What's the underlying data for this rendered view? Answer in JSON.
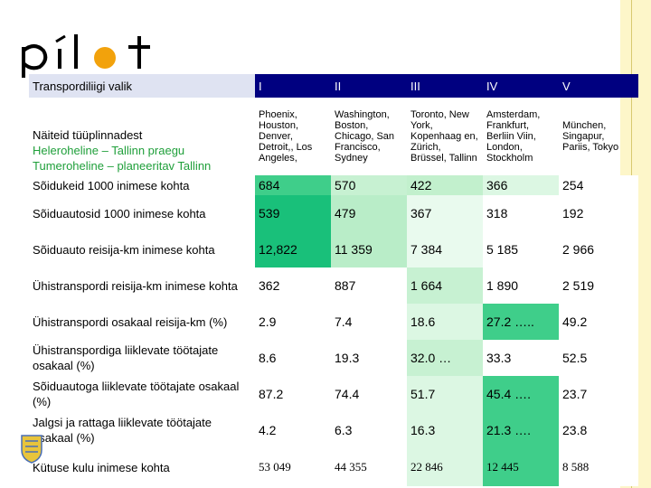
{
  "logo": {
    "text": "pilot"
  },
  "header": {
    "label": "Transpordiliigi valik",
    "columns": [
      "I",
      "II",
      "III",
      "IV",
      "V"
    ]
  },
  "intro": {
    "line1": "Näiteid tüüplinnadest",
    "line2": "Heleroheline – Tallinn praegu",
    "line3": "Tumeroheline – planeeritav Tallinn"
  },
  "cities": [
    "Phoenix, Houston, Denver, Detroit,, Los Angeles,",
    "Washington, Boston, Chicago, San Francisco, Sydney",
    "Toronto, New York, Kopenhaag en, Zürich, Brüssel, Tallinn",
    "Amsterdam, Frankfurt, Berliin Viin, London, Stockholm",
    "München, Singapur, Pariis, Tokyo"
  ],
  "rows": [
    {
      "label": "Sõidukeid 1000 inimese kohta",
      "values": [
        "684",
        "570",
        "422",
        "366",
        "254"
      ]
    },
    {
      "label": "Sõiduautosid 1000 inimese kohta",
      "values": [
        "539",
        "479",
        "367",
        "318",
        "192"
      ]
    },
    {
      "label": "Sõiduauto reisija-km inimese kohta",
      "values": [
        "12,822",
        "11 359",
        "7 384",
        "5 185",
        "2 966"
      ]
    },
    {
      "label": "Ühistranspordi reisija-km inimese kohta",
      "values": [
        "362",
        "887",
        "1 664",
        "1 890",
        "2 519"
      ]
    },
    {
      "label": "Ühistranspordi osakaal reisija-km (%)",
      "values": [
        "2.9",
        "7.4",
        "18.6",
        "27.2 …..",
        "49.2"
      ]
    },
    {
      "label": "Ühistranspordiga liiklevate töötajate osakaal (%)",
      "values": [
        "8.6",
        "19.3",
        "32.0 …",
        "33.3",
        "52.5"
      ]
    },
    {
      "label": "Sõiduautoga liiklevate töötajate osakaal (%)",
      "values": [
        "87.2",
        "74.4",
        "51.7",
        "45.4 ….",
        "23.7"
      ]
    },
    {
      "label": "Jalgsi ja rattaga liiklevate töötajate osakaal (%)",
      "values": [
        "4.2",
        "6.3",
        "16.3",
        "21.3 ….",
        "23.8"
      ]
    },
    {
      "label": "Kütuse kulu inimese kohta",
      "values": [
        "53 049",
        "44 355",
        "22 846",
        "12 445",
        "8 588"
      ]
    }
  ]
}
